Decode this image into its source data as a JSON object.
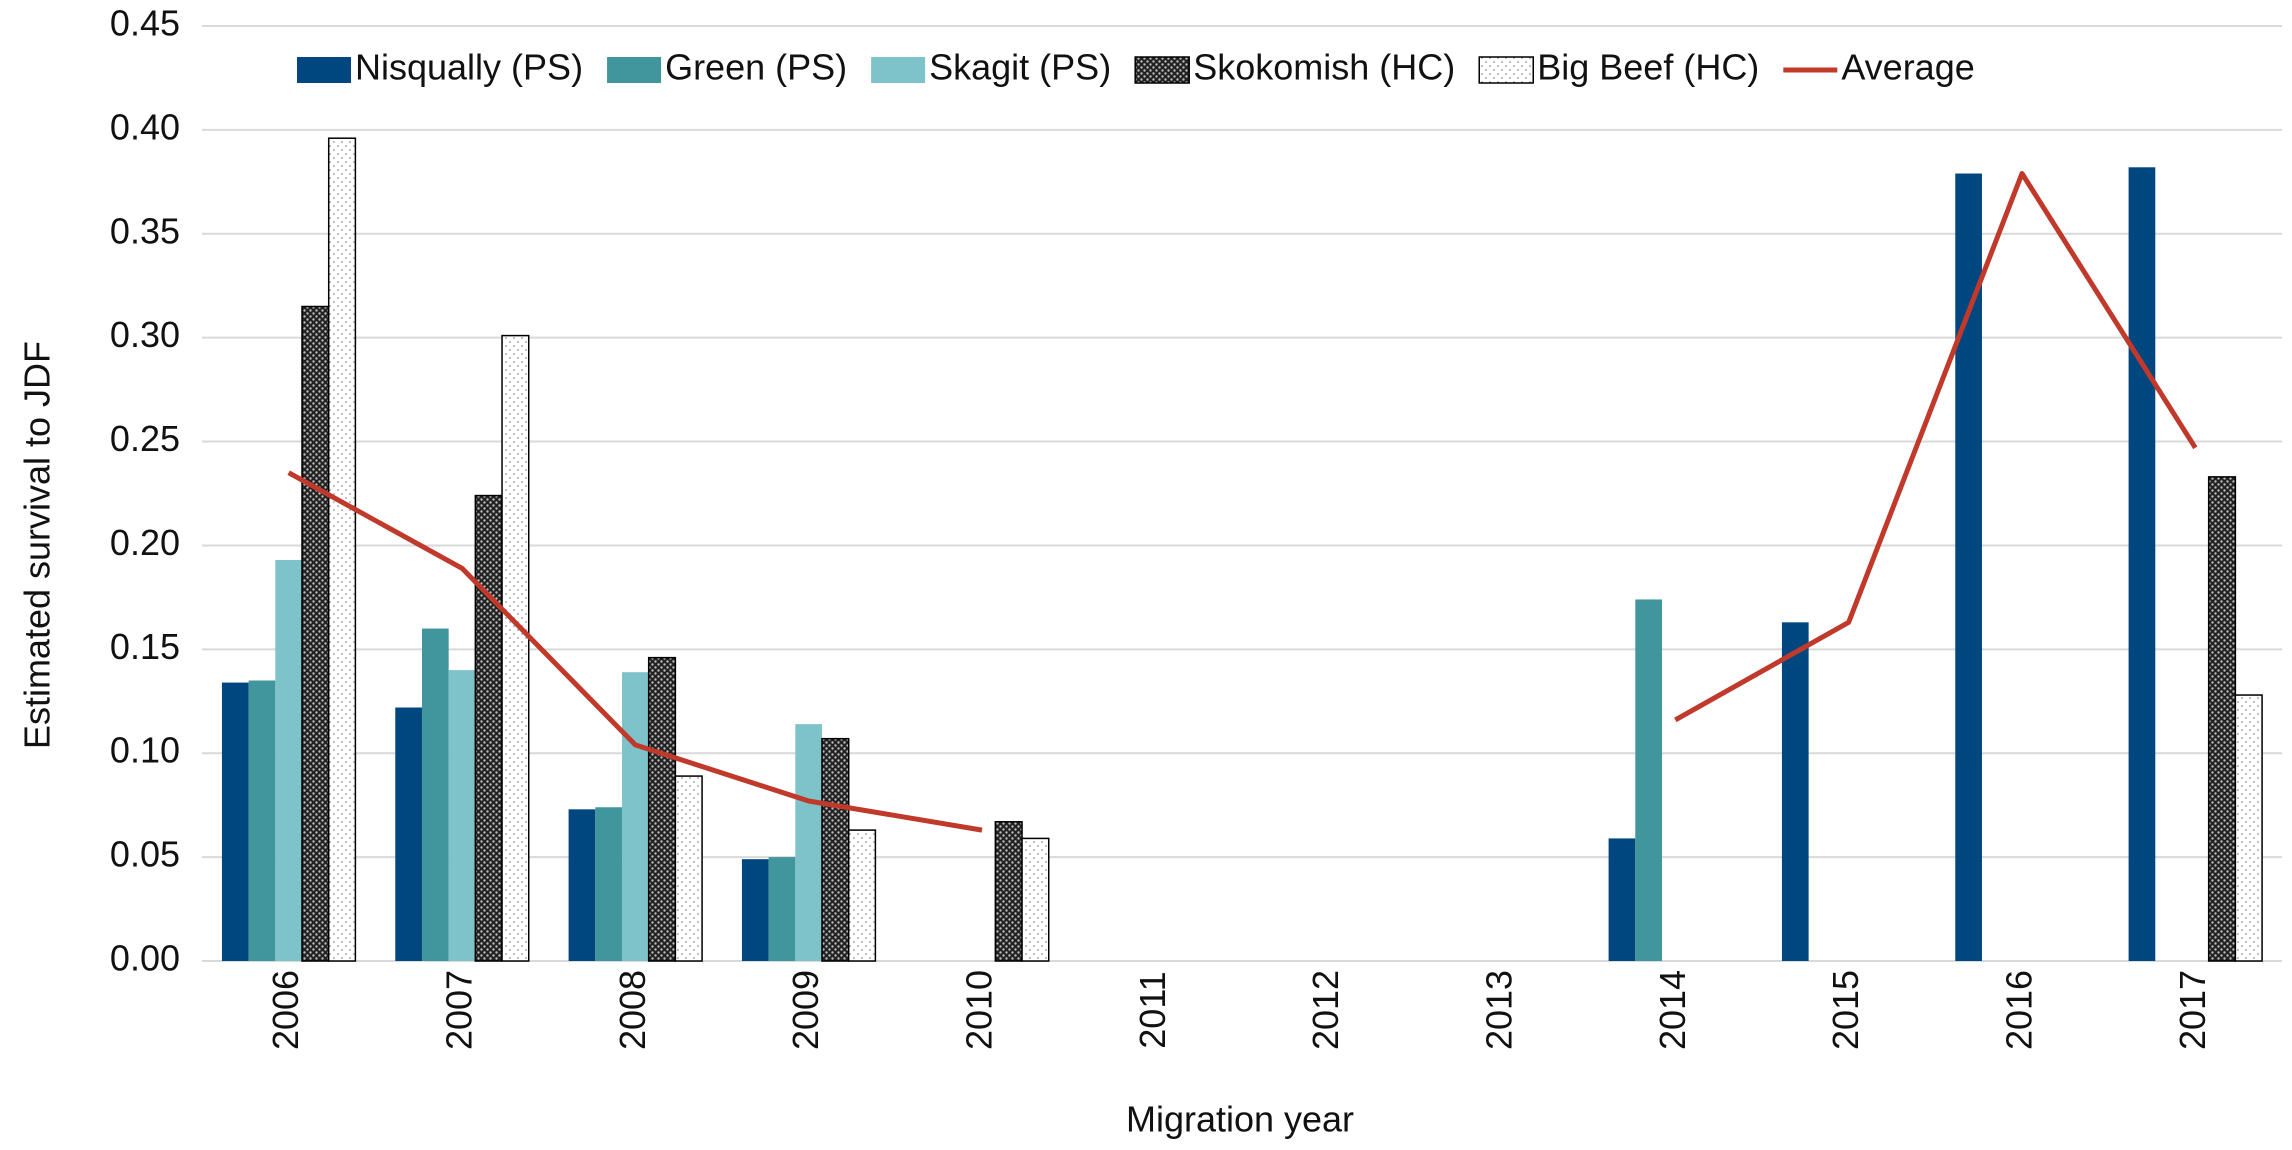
{
  "chart_data": {
    "type": "bar",
    "y_label": "Estimated survival to JDF",
    "x_label": "Migration year",
    "categories": [
      "2006",
      "2007",
      "2008",
      "2009",
      "2010",
      "2011",
      "2012",
      "2013",
      "2014",
      "2015",
      "2016",
      "2017"
    ],
    "series": [
      {
        "name": "Nisqually (PS)",
        "color": "#00467f",
        "values": [
          0.134,
          0.122,
          0.073,
          0.049,
          null,
          null,
          null,
          null,
          0.059,
          0.163,
          0.379,
          0.382
        ]
      },
      {
        "name": "Green (PS)",
        "color": "#40969c",
        "values": [
          0.135,
          0.16,
          0.074,
          0.05,
          null,
          null,
          null,
          null,
          0.174,
          null,
          null,
          null
        ]
      },
      {
        "name": "Skagit (PS)",
        "color": "#7dc3c9",
        "values": [
          0.193,
          0.14,
          0.139,
          0.114,
          null,
          null,
          null,
          null,
          null,
          null,
          null,
          null
        ]
      },
      {
        "name": "Skokomish (HC)",
        "color": "#000000",
        "pattern": "crosshatch",
        "values": [
          0.315,
          0.224,
          0.146,
          0.107,
          0.067,
          null,
          null,
          null,
          null,
          null,
          null,
          0.233
        ]
      },
      {
        "name": "Big Beef (HC)",
        "color": "#000000",
        "pattern": "dots",
        "values": [
          0.396,
          0.301,
          0.089,
          0.063,
          0.059,
          null,
          null,
          null,
          null,
          null,
          null,
          0.128
        ]
      },
      {
        "name": "Average",
        "type": "line",
        "color": "#c0392b",
        "values": [
          0.235,
          0.189,
          0.104,
          0.077,
          0.063,
          null,
          null,
          null,
          0.116,
          0.163,
          0.379,
          0.247
        ]
      }
    ],
    "ylim": [
      0,
      0.45
    ],
    "yticks": [
      {
        "value": 0,
        "label": "0.00"
      },
      0.05,
      {
        "value": 0.1,
        "label": "0.10"
      },
      0.15,
      {
        "value": 0.2,
        "label": "0.20"
      },
      0.25,
      {
        "value": 0.3,
        "label": "0.30"
      },
      0.35,
      {
        "value": 0.4,
        "label": "0.40"
      },
      0.45
    ],
    "grid": true,
    "legend": "top"
  }
}
